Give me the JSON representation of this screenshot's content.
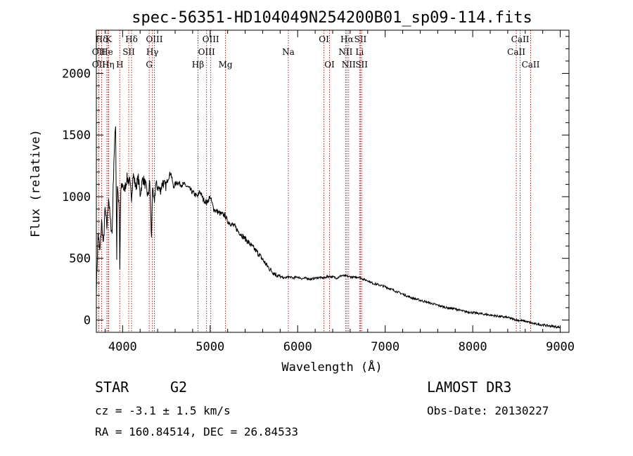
{
  "chart_data": {
    "type": "line",
    "title": "spec-56351-HD104049N254200B01_sp09-114.fits",
    "xlabel": "Wavelength (Å)",
    "ylabel": "Flux (relative)",
    "xlim": [
      3700,
      9100
    ],
    "ylim": [
      -100,
      2350
    ],
    "x_ticks": [
      4000,
      5000,
      6000,
      7000,
      8000,
      9000
    ],
    "y_ticks": [
      0,
      500,
      1000,
      1500,
      2000
    ],
    "grid": false,
    "series": [
      {
        "name": "flux",
        "x": [
          3700,
          3720,
          3740,
          3760,
          3780,
          3800,
          3820,
          3840,
          3860,
          3880,
          3900,
          3920,
          3933,
          3940,
          3960,
          3968,
          3980,
          4000,
          4020,
          4050,
          4080,
          4102,
          4120,
          4150,
          4180,
          4200,
          4230,
          4260,
          4290,
          4310,
          4330,
          4340,
          4360,
          4380,
          4400,
          4430,
          4460,
          4490,
          4520,
          4550,
          4580,
          4620,
          4660,
          4700,
          4740,
          4780,
          4820,
          4861,
          4880,
          4920,
          4960,
          5000,
          5040,
          5080,
          5120,
          5170,
          5200,
          5240,
          5280,
          5320,
          5360,
          5400,
          5450,
          5500,
          5550,
          5600,
          5650,
          5700,
          5750,
          5800,
          5850,
          5900,
          5950,
          6000,
          6050,
          6100,
          6150,
          6200,
          6250,
          6300,
          6350,
          6400,
          6450,
          6500,
          6563,
          6600,
          6650,
          6700,
          6750,
          6800,
          6850,
          6900,
          7000,
          7100,
          7200,
          7300,
          7400,
          7500,
          7600,
          7700,
          7800,
          7900,
          8000,
          8100,
          8200,
          8300,
          8400,
          8500,
          8600,
          8700,
          8800,
          8900,
          9000
        ],
        "y": [
          250,
          700,
          550,
          800,
          600,
          900,
          750,
          1000,
          800,
          700,
          1300,
          1600,
          500,
          1100,
          900,
          400,
          1050,
          1100,
          1050,
          1150,
          1120,
          1000,
          1180,
          1080,
          1150,
          1020,
          1150,
          1100,
          1000,
          1120,
          650,
          1050,
          950,
          1100,
          1080,
          1050,
          1120,
          1080,
          1150,
          1200,
          1080,
          1120,
          1100,
          1100,
          1080,
          1050,
          1020,
          1000,
          1050,
          980,
          950,
          1000,
          900,
          880,
          860,
          850,
          800,
          780,
          760,
          720,
          690,
          660,
          620,
          580,
          540,
          490,
          440,
          400,
          370,
          350,
          340,
          350,
          340,
          350,
          335,
          340,
          330,
          340,
          345,
          340,
          355,
          350,
          340,
          360,
          355,
          350,
          345,
          350,
          330,
          320,
          300,
          290,
          270,
          240,
          210,
          180,
          160,
          140,
          120,
          100,
          90,
          70,
          60,
          50,
          40,
          30,
          20,
          0,
          -10,
          -30,
          -40,
          -50,
          -60
        ]
      }
    ],
    "spectral_lines": [
      {
        "label": "Hδ",
        "wave": 3760,
        "row": 0
      },
      {
        "label": "K",
        "wave": 3840,
        "row": 0
      },
      {
        "label": "Hδ",
        "wave": 4102,
        "row": 0
      },
      {
        "label": "OIII",
        "wave": 4363,
        "row": 0
      },
      {
        "label": "OIII",
        "wave": 5007,
        "row": 0
      },
      {
        "label": "OI",
        "wave": 6300,
        "row": 0
      },
      {
        "label": "Hα",
        "wave": 6563,
        "row": 0
      },
      {
        "label": "SII",
        "wave": 6717,
        "row": 0
      },
      {
        "label": "CaII",
        "wave": 8542,
        "row": 0
      },
      {
        "label": "OII",
        "wave": 3727,
        "row": 1
      },
      {
        "label": "He",
        "wave": 3820,
        "row": 1
      },
      {
        "label": "SII",
        "wave": 4070,
        "row": 1
      },
      {
        "label": "Hγ",
        "wave": 4340,
        "row": 1
      },
      {
        "label": "OIII",
        "wave": 4959,
        "row": 1
      },
      {
        "label": "Na",
        "wave": 5893,
        "row": 1
      },
      {
        "label": "NII",
        "wave": 6548,
        "row": 1
      },
      {
        "label": "Li",
        "wave": 6708,
        "row": 1
      },
      {
        "label": "CaII",
        "wave": 8498,
        "row": 1
      },
      {
        "label": "OII",
        "wave": 3727,
        "row": 2
      },
      {
        "label": "Hη",
        "wave": 3835,
        "row": 2
      },
      {
        "label": "H",
        "wave": 3968,
        "row": 2
      },
      {
        "label": "G",
        "wave": 4304,
        "row": 2
      },
      {
        "label": "Hβ",
        "wave": 4861,
        "row": 2
      },
      {
        "label": "Mg",
        "wave": 5175,
        "row": 2
      },
      {
        "label": "OI",
        "wave": 6364,
        "row": 2
      },
      {
        "label": "NII",
        "wave": 6583,
        "row": 2
      },
      {
        "label": "SII",
        "wave": 6731,
        "row": 2
      },
      {
        "label": "CaII",
        "wave": 8662,
        "row": 2
      }
    ]
  },
  "info": {
    "object_class": "STAR",
    "subclass": "G2",
    "survey": "LAMOST DR3",
    "redshift": "cz = -3.1 ± 1.5 km/s",
    "obs_date": "Obs-Date: 20130227",
    "coords": "RA = 160.84514, DEC =  26.84533"
  },
  "colors": {
    "axis": "#000000",
    "spectrum": "#000000",
    "line_marker": "#b22222"
  }
}
